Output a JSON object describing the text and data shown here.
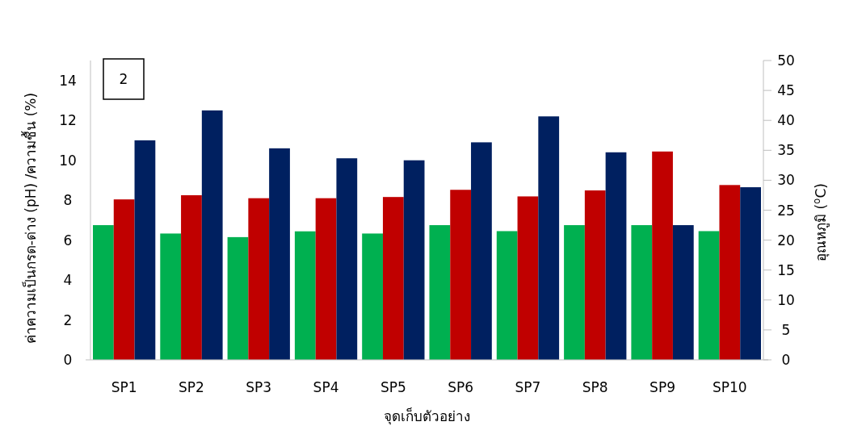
{
  "chart_data": {
    "type": "bar",
    "categories": [
      "SP1",
      "SP2",
      "SP3",
      "SP4",
      "SP5",
      "SP6",
      "SP7",
      "SP8",
      "SP9",
      "SP10"
    ],
    "series": [
      {
        "color": "#00b050",
        "values": [
          6.75,
          6.33,
          6.15,
          6.44,
          6.33,
          6.75,
          6.45,
          6.75,
          6.75,
          6.45
        ]
      },
      {
        "color": "#c00000",
        "axis": "y2",
        "values": [
          26.8,
          27.5,
          27.0,
          27.0,
          27.2,
          28.4,
          27.3,
          28.3,
          34.8,
          29.2
        ]
      },
      {
        "color": "#002060",
        "values": [
          11.0,
          12.5,
          10.6,
          10.1,
          10.0,
          10.9,
          12.2,
          10.4,
          6.75,
          8.65
        ]
      }
    ],
    "ylim": [
      0,
      15
    ],
    "yticks": [
      0,
      2,
      4,
      6,
      8,
      10,
      12,
      14
    ],
    "y2lim": [
      0,
      50
    ],
    "y2ticks": [
      0,
      5,
      10,
      15,
      20,
      25,
      30,
      35,
      40,
      45,
      50
    ],
    "xlabel": "จุดเก็บตัวอย่าง",
    "ylabel": "ค่าความเป็นกรด-ด่าง (pH) /ความชื้น (%)",
    "y2label": "อุณหภูมิ ($^{o}$C)",
    "annotations": [
      "2"
    ]
  }
}
